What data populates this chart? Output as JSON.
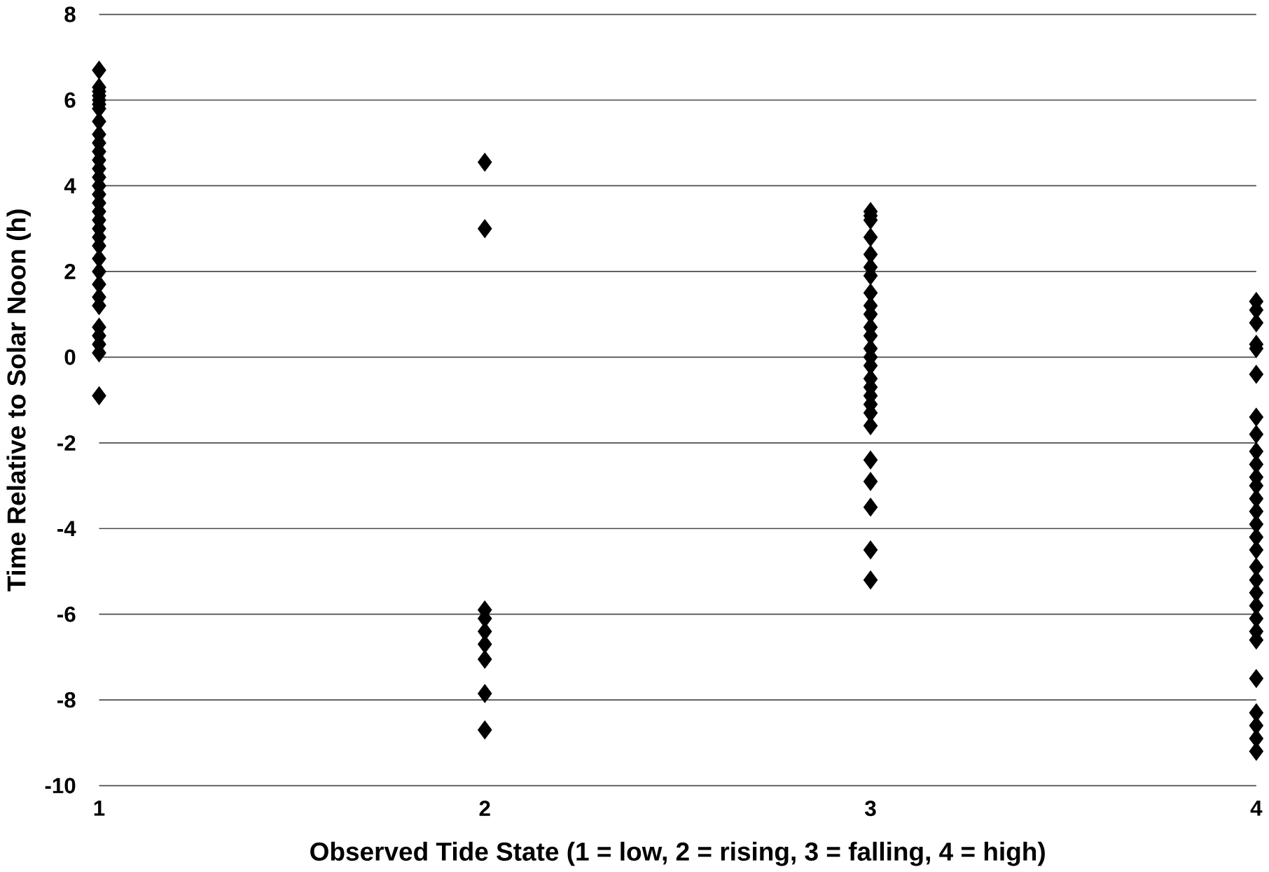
{
  "chart_data": {
    "type": "scatter",
    "xlabel": "Observed Tide State (1 = low, 2 = rising, 3 = falling, 4 = high)",
    "ylabel": "Time Relative to Solar Noon (h)",
    "xlim": [
      1,
      4
    ],
    "xticks": [
      1,
      2,
      3,
      4
    ],
    "ylim": [
      -10,
      8
    ],
    "yticks": [
      -10,
      -8,
      -6,
      -4,
      -2,
      0,
      2,
      4,
      6,
      8
    ],
    "grid": "y",
    "marker": "diamond",
    "series": [
      {
        "color": "#000000",
        "x": [
          1,
          1,
          1,
          1,
          1,
          1,
          1,
          1,
          1,
          1,
          1,
          1,
          1,
          1,
          1,
          1,
          1,
          1,
          1,
          1,
          1,
          1,
          1,
          1,
          1,
          1,
          1,
          1,
          1,
          1,
          1,
          1,
          2,
          2,
          2,
          2,
          2,
          2,
          2,
          2,
          2,
          3,
          3,
          3,
          3,
          3,
          3,
          3,
          3,
          3,
          3,
          3,
          3,
          3,
          3,
          3,
          3,
          3,
          3,
          3,
          3,
          3,
          3,
          3,
          3,
          3,
          3,
          4,
          4,
          4,
          4,
          4,
          4,
          4,
          4,
          4,
          4,
          4,
          4,
          4,
          4,
          4,
          4,
          4,
          4,
          4,
          4,
          4,
          4,
          4,
          4,
          4,
          4,
          4,
          4,
          4
        ],
        "values": [
          6.7,
          6.3,
          6.2,
          6.1,
          6.0,
          5.9,
          5.8,
          5.5,
          5.2,
          5.0,
          4.8,
          4.6,
          4.4,
          4.2,
          4.0,
          3.8,
          3.6,
          3.4,
          3.2,
          3.0,
          2.8,
          2.6,
          2.3,
          2.0,
          1.7,
          1.4,
          1.2,
          0.7,
          0.5,
          0.3,
          0.1,
          -0.9,
          4.55,
          3.0,
          -5.9,
          -6.1,
          -6.4,
          -6.7,
          -7.05,
          -7.85,
          -8.7,
          3.4,
          3.3,
          3.2,
          2.8,
          2.4,
          2.1,
          1.9,
          1.5,
          1.2,
          1.0,
          0.7,
          0.5,
          0.2,
          0,
          -0.2,
          -0.5,
          -0.7,
          -0.9,
          -1.1,
          -1.3,
          -1.6,
          -2.4,
          -2.9,
          -3.5,
          -4.5,
          -5.2,
          1.3,
          1.1,
          0.8,
          0.3,
          0.2,
          -0.4,
          -1.4,
          -1.8,
          -2.2,
          -2.5,
          -2.8,
          -3.0,
          -3.3,
          -3.6,
          -3.9,
          -4.2,
          -4.5,
          -4.9,
          -5.2,
          -5.5,
          -5.8,
          -6.1,
          -6.4,
          -6.6,
          -7.5,
          -8.3,
          -8.6,
          -8.9,
          -9.2
        ]
      }
    ]
  }
}
